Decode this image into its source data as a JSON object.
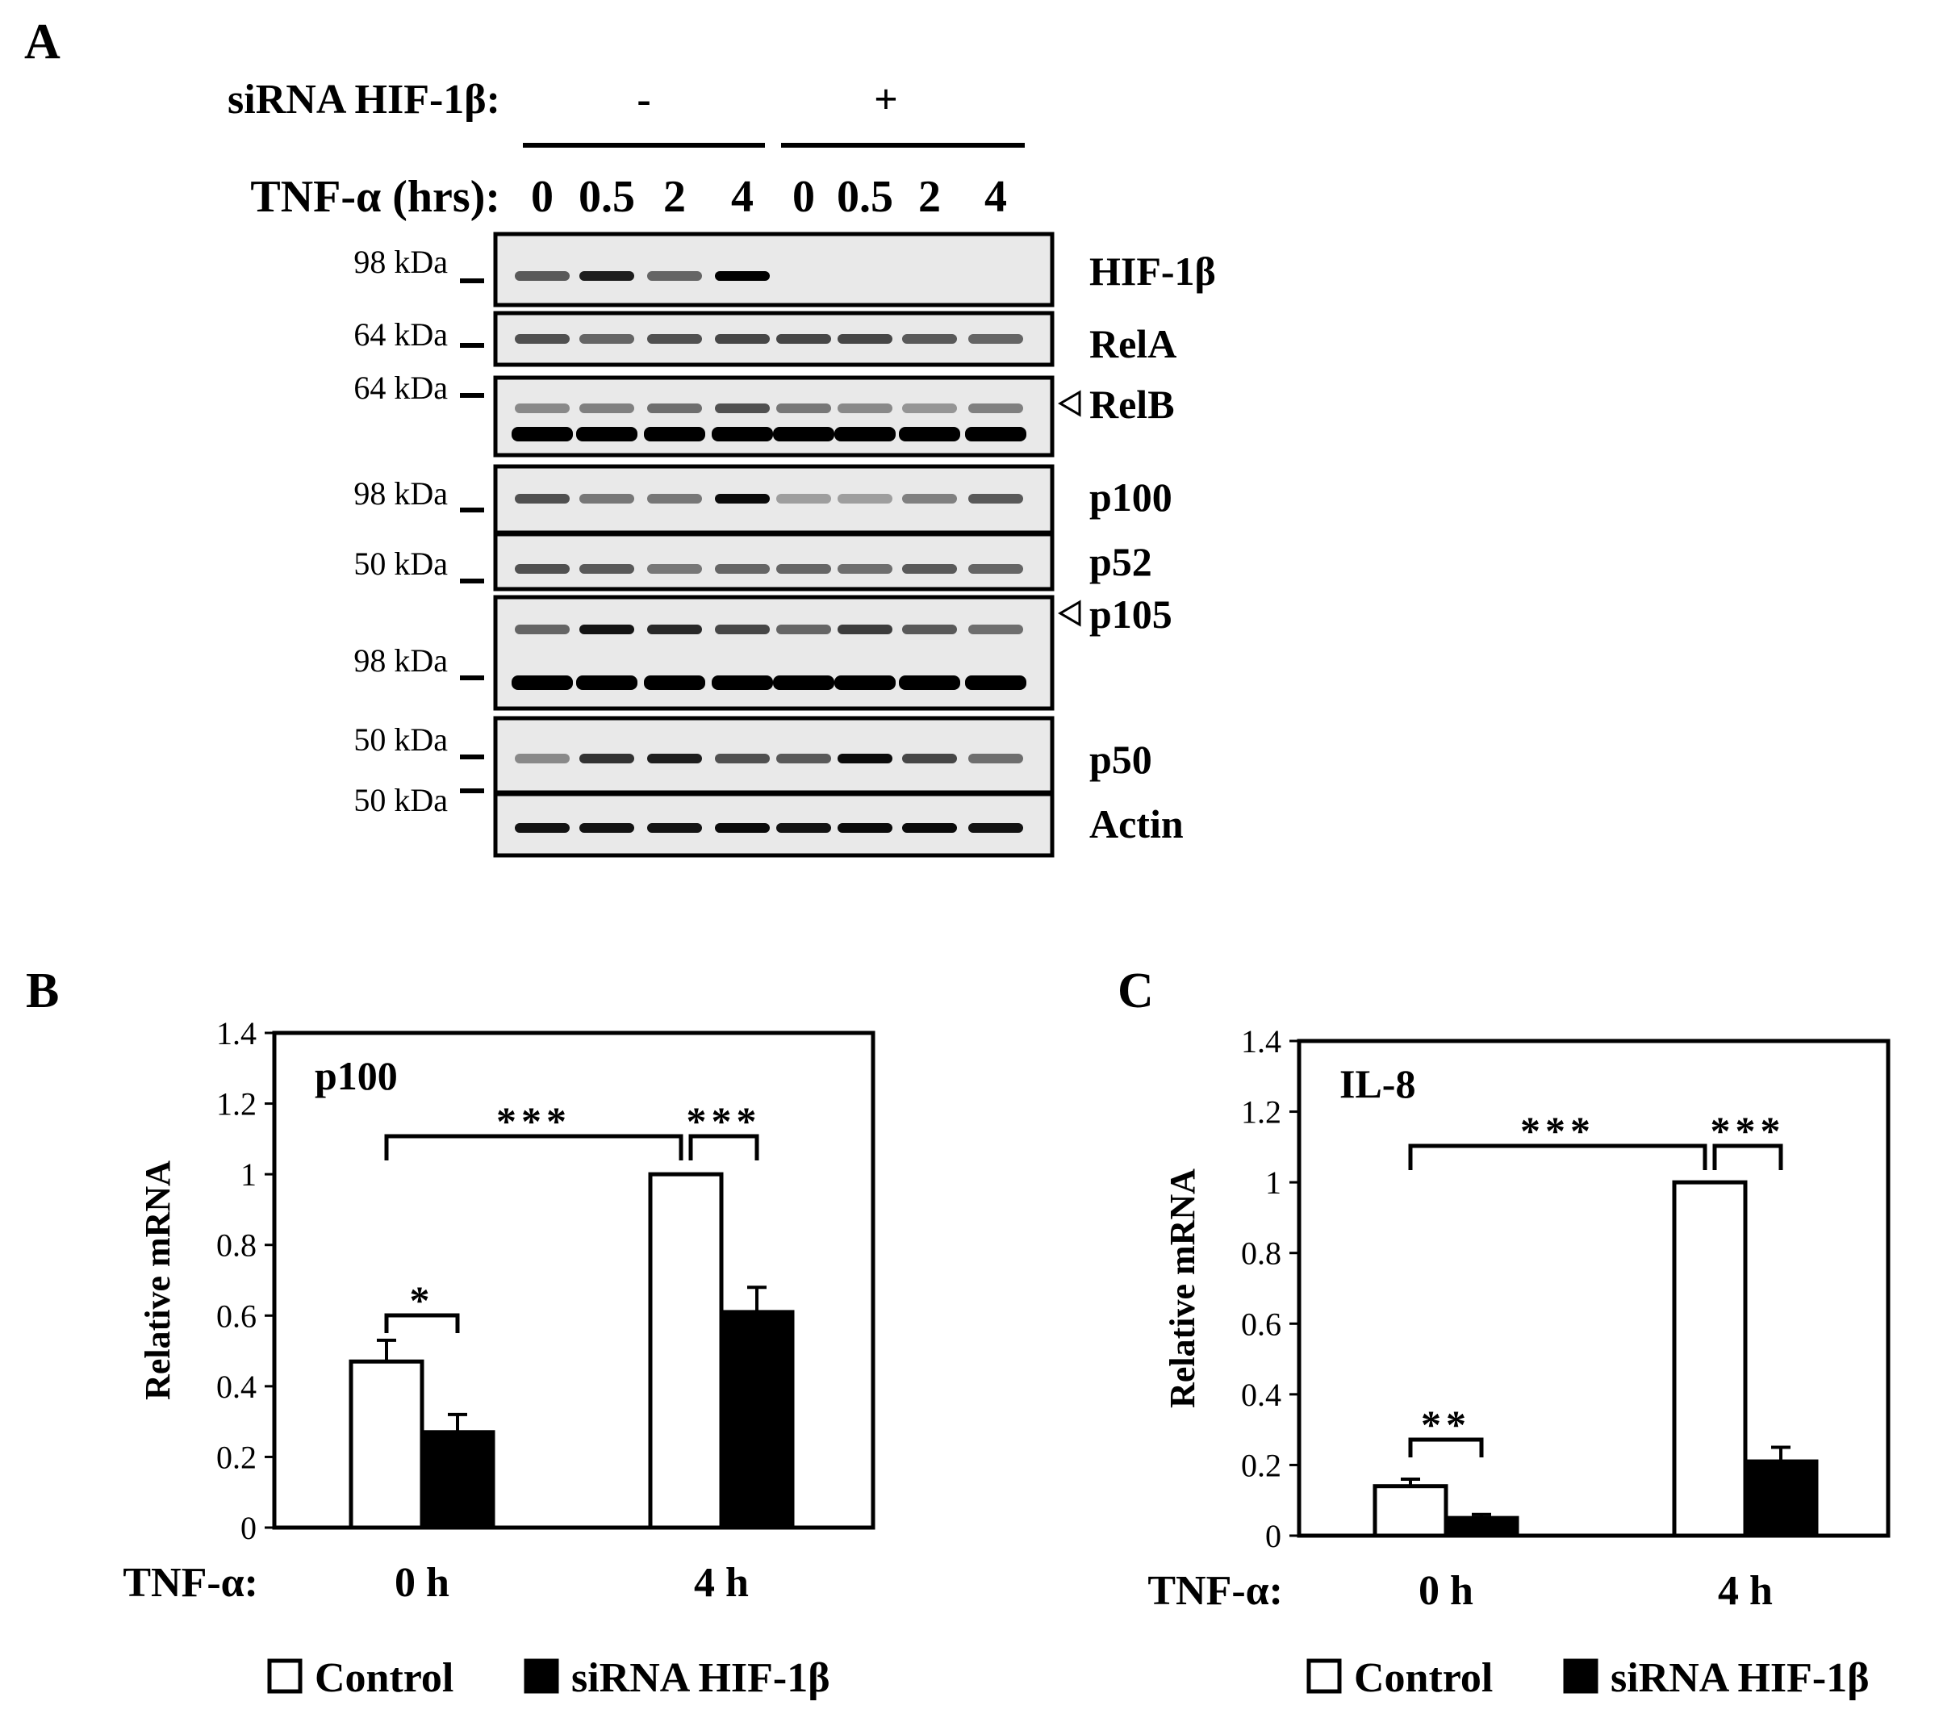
{
  "panel_a": {
    "letter": "A",
    "sirna_label": "siRNA HIF-1β:",
    "sirna_minus": "-",
    "sirna_plus": "+",
    "tnf_label": "TNF-α (hrs):",
    "timepoints": [
      "0",
      "0.5",
      "2",
      "4",
      "0",
      "0.5",
      "2",
      "4"
    ],
    "markers": [
      "98 kDa",
      "64 kDa",
      "64 kDa",
      "98 kDa",
      "50 kDa",
      "98 kDa",
      "50 kDa",
      "50 kDa"
    ],
    "blots": [
      {
        "label": "HIF-1β",
        "bands": [
          0.55,
          0.85,
          0.5,
          1.0,
          0,
          0,
          0,
          0
        ]
      },
      {
        "label": "RelA",
        "bands": [
          0.6,
          0.5,
          0.6,
          0.65,
          0.65,
          0.65,
          0.55,
          0.5
        ]
      },
      {
        "label": "RelB",
        "bands": [
          0.3,
          0.35,
          0.45,
          0.6,
          0.4,
          0.3,
          0.25,
          0.35
        ]
      },
      {
        "label": "p100",
        "bands": [
          0.6,
          0.4,
          0.4,
          0.95,
          0.2,
          0.2,
          0.35,
          0.55
        ]
      },
      {
        "label": "p52",
        "bands": [
          0.6,
          0.55,
          0.4,
          0.5,
          0.5,
          0.45,
          0.55,
          0.5
        ]
      },
      {
        "label": "p105",
        "bands": [
          0.5,
          0.9,
          0.8,
          0.65,
          0.5,
          0.7,
          0.55,
          0.45
        ]
      },
      {
        "label": "p50",
        "bands": [
          0.3,
          0.75,
          0.85,
          0.6,
          0.55,
          0.95,
          0.65,
          0.45
        ]
      },
      {
        "label": "Actin",
        "bands": [
          0.9,
          0.9,
          0.9,
          0.95,
          0.9,
          0.95,
          0.95,
          0.9
        ]
      }
    ],
    "lower_bands": {
      "RelB": [
        1,
        1,
        1,
        1,
        1,
        1,
        1,
        1
      ],
      "p105": [
        1,
        1,
        1,
        1,
        1,
        1,
        1,
        1
      ]
    }
  },
  "chart_data": [
    {
      "type": "bar",
      "panel": "B",
      "title": "p100",
      "ylabel": "Relative mRNA",
      "ylim": [
        0,
        1.4
      ],
      "yticks": [
        "0",
        "0.2",
        "0.4",
        "0.6",
        "0.8",
        "1",
        "1.2",
        "1.4"
      ],
      "x_prefix": "TNF-α:",
      "categories": [
        "0 h",
        "4 h"
      ],
      "series": [
        {
          "name": "Control",
          "values": [
            0.47,
            1.0
          ],
          "errors": [
            0.06,
            0.0
          ],
          "color": "#ffffff"
        },
        {
          "name": "siRNA HIF-1β",
          "values": [
            0.27,
            0.61
          ],
          "errors": [
            0.05,
            0.07
          ],
          "color": "#000000"
        }
      ],
      "significance": [
        "*",
        "***",
        "***"
      ]
    },
    {
      "type": "bar",
      "panel": "C",
      "title": "IL-8",
      "ylabel": "Relative mRNA",
      "ylim": [
        0,
        1.4
      ],
      "yticks": [
        "0",
        "0.2",
        "0.4",
        "0.6",
        "0.8",
        "1",
        "1.2",
        "1.4"
      ],
      "x_prefix": "TNF-α:",
      "categories": [
        "0 h",
        "4 h"
      ],
      "series": [
        {
          "name": "Control",
          "values": [
            0.14,
            1.0
          ],
          "errors": [
            0.02,
            0.0
          ],
          "color": "#ffffff"
        },
        {
          "name": "siRNA HIF-1β",
          "values": [
            0.05,
            0.21
          ],
          "errors": [
            0.01,
            0.04
          ],
          "color": "#000000"
        }
      ],
      "significance": [
        "**",
        "***",
        "***"
      ]
    }
  ]
}
